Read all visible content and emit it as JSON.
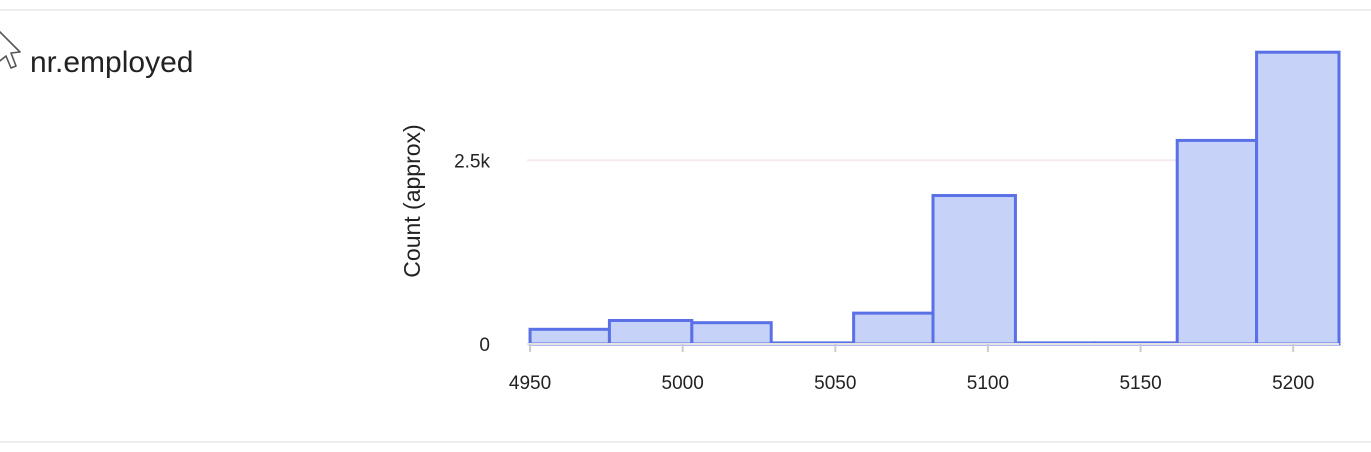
{
  "card": {
    "title": "nr.employed"
  },
  "chart_data": {
    "type": "bar",
    "xlabel": "",
    "ylabel": "Count (approx)",
    "bins": [
      {
        "start": 4950,
        "end": 4976,
        "count": 200
      },
      {
        "start": 4976,
        "end": 5003,
        "count": 320
      },
      {
        "start": 5003,
        "end": 5029,
        "count": 290
      },
      {
        "start": 5029,
        "end": 5056,
        "count": 15
      },
      {
        "start": 5056,
        "end": 5082,
        "count": 420
      },
      {
        "start": 5082,
        "end": 5109,
        "count": 2020
      },
      {
        "start": 5109,
        "end": 5135,
        "count": 15
      },
      {
        "start": 5135,
        "end": 5162,
        "count": 15
      },
      {
        "start": 5162,
        "end": 5188,
        "count": 2770
      },
      {
        "start": 5188,
        "end": 5215,
        "count": 3970
      }
    ],
    "xlim": [
      4949,
      5215
    ],
    "ylim": [
      0,
      4000
    ],
    "x_ticks": [
      {
        "value": 4950,
        "label": "4950"
      },
      {
        "value": 5000,
        "label": "5000"
      },
      {
        "value": 5050,
        "label": "5050"
      },
      {
        "value": 5100,
        "label": "5100"
      },
      {
        "value": 5150,
        "label": "5150"
      },
      {
        "value": 5200,
        "label": "5200"
      }
    ],
    "y_ticks": [
      {
        "value": 0,
        "label": "0"
      },
      {
        "value": 2500,
        "label": "2.5k"
      }
    ],
    "colors": {
      "bar_fill": "#c6d2f8",
      "bar_stroke": "#5a70e6",
      "gridline": "#f6eaea",
      "axis": "#e4e4e4"
    }
  }
}
